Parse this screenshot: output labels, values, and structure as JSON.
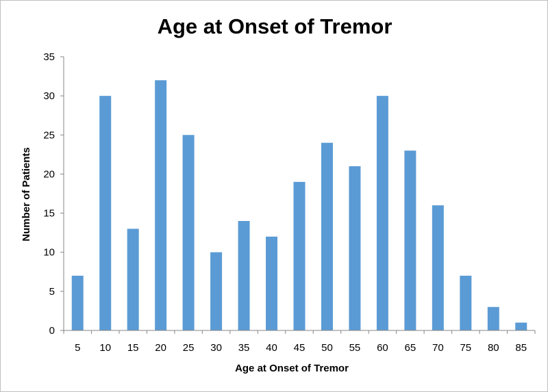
{
  "colors": {
    "bar": "#5b9bd5",
    "axis": "#868686",
    "frame": "#bfbfbf"
  },
  "chart_data": {
    "type": "bar",
    "title": "Age at Onset of Tremor",
    "xlabel": "Age at Onset of Tremor",
    "ylabel": "Number of Patients",
    "categories": [
      "5",
      "10",
      "15",
      "20",
      "25",
      "30",
      "35",
      "40",
      "45",
      "50",
      "55",
      "60",
      "65",
      "70",
      "75",
      "80",
      "85"
    ],
    "values": [
      7,
      30,
      13,
      32,
      25,
      10,
      14,
      12,
      19,
      24,
      21,
      30,
      23,
      16,
      7,
      3,
      1
    ],
    "ylim": [
      0,
      35
    ],
    "yticks": [
      "0",
      "5",
      "10",
      "15",
      "20",
      "25",
      "30",
      "35"
    ],
    "grid": false,
    "legend": "none"
  }
}
